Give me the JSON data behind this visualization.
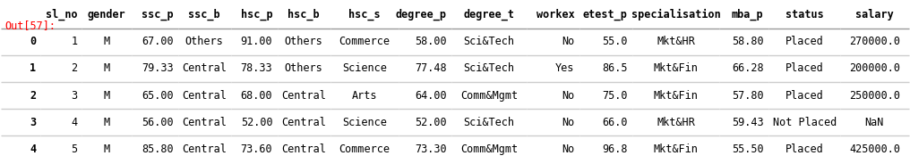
{
  "out_label": "Out[57]:",
  "columns": [
    "",
    "sl_no",
    "gender",
    "ssc_p",
    "ssc_b",
    "hsc_p",
    "hsc_b",
    "hsc_s",
    "degree_p",
    "degree_t",
    "workex",
    "etest_p",
    "specialisation",
    "mba_p",
    "status",
    "salary"
  ],
  "rows": [
    [
      "0",
      "1",
      "M",
      "67.00",
      "Others",
      "91.00",
      "Others",
      "Commerce",
      "58.00",
      "Sci&Tech",
      "No",
      "55.0",
      "Mkt&HR",
      "58.80",
      "Placed",
      "270000.0"
    ],
    [
      "1",
      "2",
      "M",
      "79.33",
      "Central",
      "78.33",
      "Others",
      "Science",
      "77.48",
      "Sci&Tech",
      "Yes",
      "86.5",
      "Mkt&Fin",
      "66.28",
      "Placed",
      "200000.0"
    ],
    [
      "2",
      "3",
      "M",
      "65.00",
      "Central",
      "68.00",
      "Central",
      "Arts",
      "64.00",
      "Comm&Mgmt",
      "No",
      "75.0",
      "Mkt&Fin",
      "57.80",
      "Placed",
      "250000.0"
    ],
    [
      "3",
      "4",
      "M",
      "56.00",
      "Central",
      "52.00",
      "Central",
      "Science",
      "52.00",
      "Sci&Tech",
      "No",
      "66.0",
      "Mkt&HR",
      "59.43",
      "Not Placed",
      "NaN"
    ],
    [
      "4",
      "5",
      "M",
      "85.80",
      "Central",
      "73.60",
      "Central",
      "Commerce",
      "73.30",
      "Comm&Mgmt",
      "No",
      "96.8",
      "Mkt&Fin",
      "55.50",
      "Placed",
      "425000.0"
    ]
  ],
  "bg_color": "#ffffff",
  "header_color": "#ffffff",
  "row_colors": [
    "#ffffff",
    "#ffffff",
    "#ffffff",
    "#ffffff",
    "#ffffff"
  ],
  "text_color": "#000000",
  "out_label_color": "#ff0000",
  "font_size": 8.5,
  "header_font_size": 8.5,
  "bold_rows": true
}
